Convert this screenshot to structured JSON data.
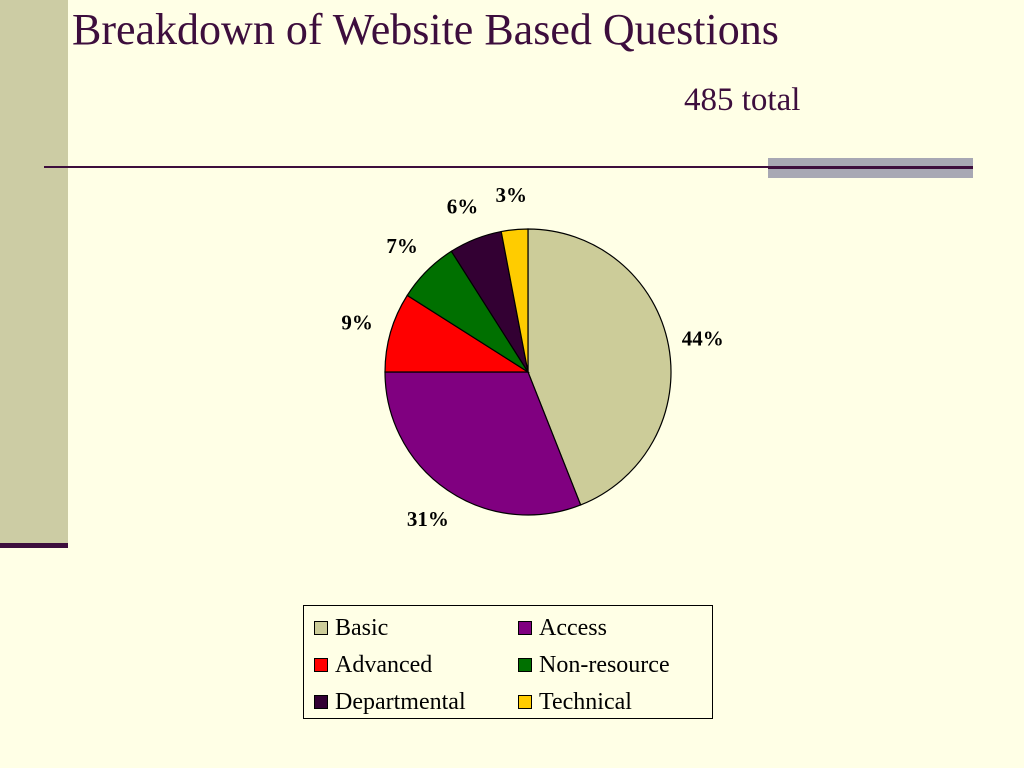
{
  "slide": {
    "title": "Breakdown of Website Based Questions",
    "subtitle": "485 total"
  },
  "chart_data": {
    "type": "pie",
    "title": "",
    "categories": [
      "Basic",
      "Access",
      "Advanced",
      "Non-resource",
      "Departmental",
      "Technical"
    ],
    "values": [
      44,
      31,
      9,
      7,
      6,
      3
    ],
    "labels": [
      "44%",
      "31%",
      "9%",
      "7%",
      "6%",
      "3%"
    ],
    "colors": [
      "#CCCC99",
      "#800080",
      "#FF0000",
      "#007000",
      "#330033",
      "#FFCC00"
    ],
    "legend_position": "bottom"
  }
}
